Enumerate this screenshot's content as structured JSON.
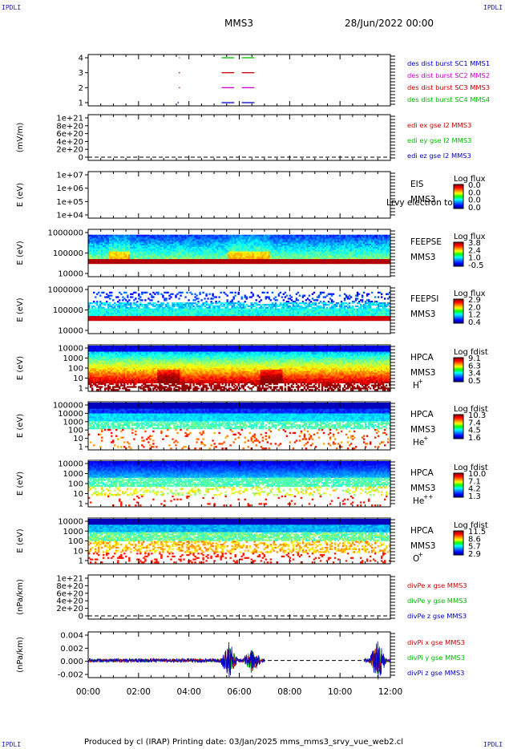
{
  "corner_label": "IPDLI",
  "header": {
    "mission": "MMS3",
    "date": "28/Jun/2022 00:00"
  },
  "footer": "Produced by cl (IRAP)   Printing date: 03/Jan/2025   mms_mms3_srvy_vue_web2.cl",
  "time_axis": {
    "ticks": [
      "00:00",
      "02:00",
      "04:00",
      "06:00",
      "08:00",
      "10:00",
      "12:00"
    ],
    "range_hours": [
      0,
      12
    ]
  },
  "colors": {
    "blue": "#0000cc",
    "magenta": "#cc00cc",
    "red": "#cc0000",
    "green": "#00bb00"
  },
  "chart_data": [
    {
      "type": "line",
      "panel": "burst",
      "yticks": [
        "4",
        "3",
        "2",
        "1"
      ],
      "series": [
        {
          "name": "des dist burst SC1 MMS1",
          "color": "#0000cc",
          "level": 1,
          "segments": [
            [
              3.55,
              3.6
            ],
            [
              5.3,
              5.8
            ],
            [
              6.1,
              6.6
            ]
          ]
        },
        {
          "name": "des dist burst SC2 MMS2",
          "color": "#cc00cc",
          "level": 2,
          "segments": [
            [
              3.6,
              3.62
            ],
            [
              5.3,
              5.8
            ],
            [
              6.1,
              6.6
            ]
          ]
        },
        {
          "name": "des dist burst SC3 MMS3",
          "color": "#cc0000",
          "level": 3,
          "segments": [
            [
              3.6,
              3.62
            ],
            [
              5.3,
              5.8
            ],
            [
              6.1,
              6.6
            ]
          ]
        },
        {
          "name": "des dist burst SC4 MMS4",
          "color": "#00bb00",
          "level": 4,
          "segments": [
            [
              3.6,
              3.62
            ],
            [
              5.3,
              5.8
            ],
            [
              6.1,
              6.6
            ]
          ]
        }
      ]
    },
    {
      "type": "line",
      "panel": "edi",
      "ylabel": "(mV/m)",
      "yticks": [
        "1e+21",
        "8e+20",
        "6e+20",
        "4e+20",
        "2e+20",
        "0"
      ],
      "series": [
        {
          "name": "edi ex gse l2 MMS3",
          "color": "#cc0000"
        },
        {
          "name": "edi ey gse l2 MMS3",
          "color": "#00bb00"
        },
        {
          "name": "edi ez gse l2 MMS3",
          "color": "#0000cc"
        }
      ]
    },
    {
      "type": "heatmap",
      "panel": "eis",
      "ylabel": "E (eV)",
      "yticks": [
        "1e+07",
        "1e+06",
        "1e+05",
        "1e+04"
      ],
      "labels": [
        "EIS",
        "MMS3"
      ],
      "overlay_text": "Lrvy electron to",
      "colorbar": {
        "title": "Log flux",
        "ticks": [
          "0.0",
          "0.0",
          "0.0",
          "0.0"
        ]
      }
    },
    {
      "type": "heatmap",
      "panel": "feepse",
      "ylabel": "E (eV)",
      "yticks": [
        "1000000",
        "100000",
        "10000"
      ],
      "labels": [
        "FEEPSE",
        "MMS3"
      ],
      "colorbar": {
        "title": "Log flux",
        "ticks": [
          "3.8",
          "2.4",
          "1.0",
          "-0.5"
        ]
      }
    },
    {
      "type": "heatmap",
      "panel": "feepsi",
      "ylabel": "E (eV)",
      "yticks": [
        "1000000",
        "100000",
        "10000"
      ],
      "labels": [
        "FEEPSI",
        "MMS3"
      ],
      "colorbar": {
        "title": "Log flux",
        "ticks": [
          "2.9",
          "2.0",
          "1.2",
          "0.4"
        ]
      }
    },
    {
      "type": "heatmap",
      "panel": "hpca_h",
      "ylabel": "E (eV)",
      "yticks": [
        "10000",
        "1000",
        "100",
        "10",
        "1"
      ],
      "labels": [
        "HPCA",
        "MMS3",
        "H",
        "+"
      ],
      "colorbar": {
        "title": "Log fdist",
        "ticks": [
          "9.1",
          "6.3",
          "3.4",
          "0.5"
        ]
      }
    },
    {
      "type": "heatmap",
      "panel": "hpca_he",
      "ylabel": "E (eV)",
      "yticks": [
        "100000",
        "10000",
        "1000",
        "100",
        "10",
        "1"
      ],
      "labels": [
        "HPCA",
        "MMS3",
        "He",
        "+"
      ],
      "colorbar": {
        "title": "Log fdist",
        "ticks": [
          "10.3",
          "7.4",
          "4.5",
          "1.6"
        ]
      }
    },
    {
      "type": "heatmap",
      "panel": "hpca_hepp",
      "ylabel": "E (eV)",
      "yticks": [
        "10000",
        "1000",
        "100",
        "10",
        "1"
      ],
      "labels": [
        "HPCA",
        "MMS3",
        "He",
        "++"
      ],
      "colorbar": {
        "title": "Log fdist",
        "ticks": [
          "10.0",
          "7.1",
          "4.2",
          "1.3"
        ]
      }
    },
    {
      "type": "heatmap",
      "panel": "hpca_o",
      "ylabel": "E (eV)",
      "yticks": [
        "10000",
        "1000",
        "100",
        "10",
        "1"
      ],
      "labels": [
        "HPCA",
        "MMS3",
        "O",
        "+"
      ],
      "colorbar": {
        "title": "Log fdist",
        "ticks": [
          "11.5",
          "8.6",
          "5.7",
          "2.9"
        ]
      }
    },
    {
      "type": "line",
      "panel": "divpe",
      "ylabel": "(nPa/km)",
      "yticks": [
        "1e+21",
        "8e+20",
        "6e+20",
        "4e+20",
        "2e+20",
        "0"
      ],
      "series": [
        {
          "name": "divPe x gse MMS3",
          "color": "#cc0000"
        },
        {
          "name": "divPe y gse MMS3",
          "color": "#00bb00"
        },
        {
          "name": "divPe z gse MMS3",
          "color": "#0000cc"
        }
      ]
    },
    {
      "type": "line",
      "panel": "divpi",
      "ylabel": "(nPa/km)",
      "yticks": [
        "0.004",
        "0.002",
        "0.000",
        "-0.002"
      ],
      "ylim": [
        -0.003,
        0.005
      ],
      "series": [
        {
          "name": "divPi x gse MMS3",
          "color": "#cc0000"
        },
        {
          "name": "divPi y gse MMS3",
          "color": "#00bb00"
        },
        {
          "name": "divPi z gse MMS3",
          "color": "#0000cc"
        }
      ],
      "data_intervals_hours": [
        [
          0,
          7.0
        ],
        [
          10.95,
          12
        ]
      ],
      "burst_peaks": [
        {
          "t": 5.6,
          "max": 0.0038,
          "min": -0.0012
        },
        {
          "t": 6.5,
          "max": 0.003,
          "min": -0.0015
        },
        {
          "t": 11.5,
          "max": 0.0042,
          "min": -0.0016
        }
      ]
    }
  ]
}
